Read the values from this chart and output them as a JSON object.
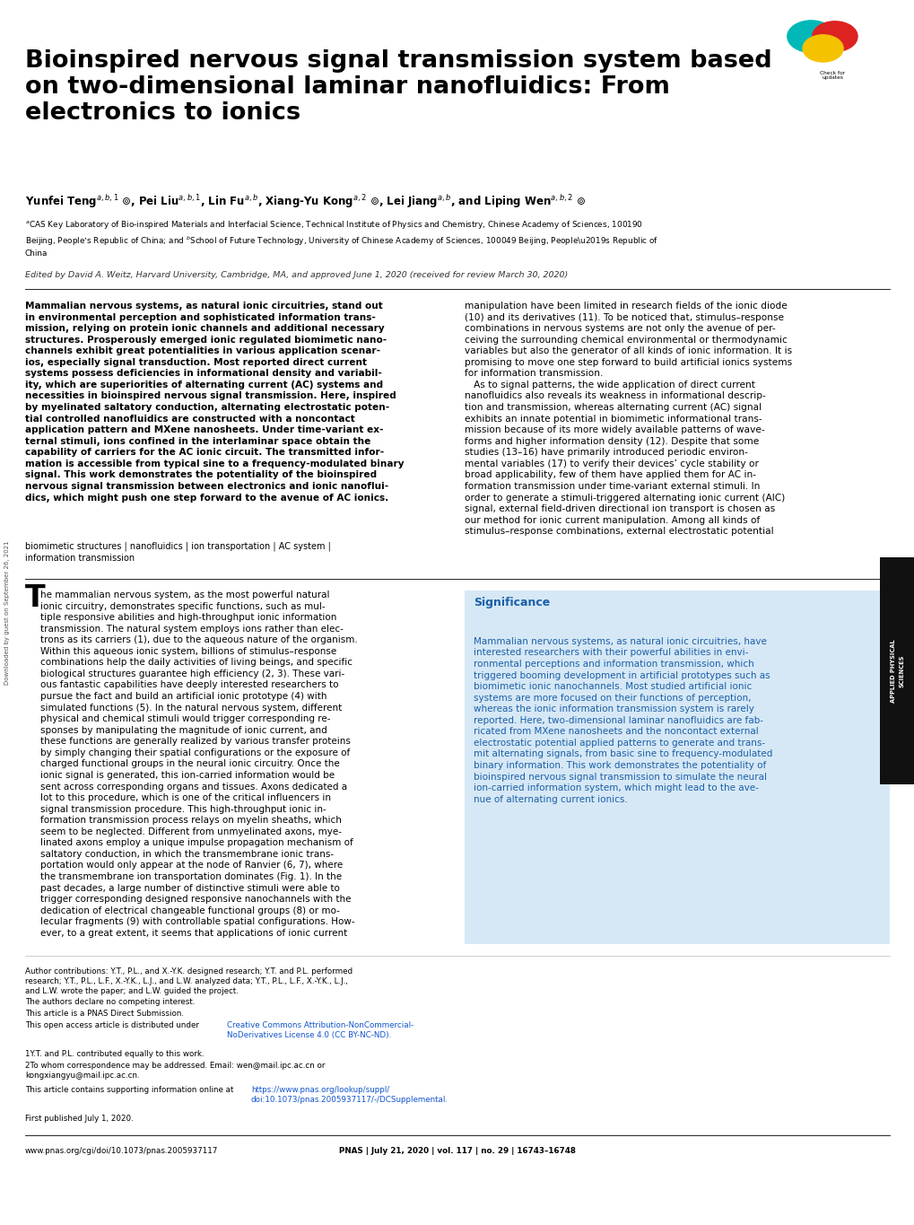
{
  "bg_color": "#ffffff",
  "page_width": 10.2,
  "page_height": 13.65,
  "title": "Bioinspired nervous signal transmission system based\non two-dimensional laminar nanofluidics: From\nelectronics to ionics",
  "edited_by": "Edited by David A. Weitz, Harvard University, Cambridge, MA, and approved June 1, 2020 (received for review March 30, 2020)",
  "abstract_bold_left": "Mammalian nervous systems, as natural ionic circuitries, stand out\nin environmental perception and sophisticated information trans-\nmission, relying on protein ionic channels and additional necessary\nstructures. Prosperously emerged ionic regulated biomimetic nano-\nchannels exhibit great potentialities in various application scenar-\nios, especially signal transduction. Most reported direct current\nsystems possess deficiencies in informational density and variabil-\nity, which are superiorities of alternating current (AC) systems and\nnecessities in bioinspired nervous signal transmission. Here, inspired\nby myelinated saltatory conduction, alternating electrostatic poten-\ntial controlled nanofluidics are constructed with a noncontact\napplication pattern and MXene nanosheets. Under time-variant ex-\nternal stimuli, ions confined in the interlaminar space obtain the\ncapability of carriers for the AC ionic circuit. The transmitted infor-\nmation is accessible from typical sine to a frequency-modulated binary\nsignal. This work demonstrates the potentiality of the bioinspired\nnervous signal transmission between electronics and ionic nanoflui-\ndics, which might push one step forward to the avenue of AC ionics.",
  "abstract_right": "manipulation have been limited in research fields of the ionic diode\n(10) and its derivatives (11). To be noticed that, stimulus–response\ncombinations in nervous systems are not only the avenue of per-\nceiving the surrounding chemical environmental or thermodynamic\nvariables but also the generator of all kinds of ionic information. It is\npromising to move one step forward to build artificial ionics systems\nfor information transmission.\n   As to signal patterns, the wide application of direct current\nnanofluidics also reveals its weakness in informational descrip-\ntion and transmission, whereas alternating current (AC) signal\nexhibits an innate potential in biomimetic informational trans-\nmission because of its more widely available patterns of wave-\nforms and higher information density (12). Despite that some\nstudies (13–16) have primarily introduced periodic environ-\nmental variables (17) to verify their devices’ cycle stability or\nbroad applicability, few of them have applied them for AC in-\nformation transmission under time-variant external stimuli. In\norder to generate a stimuli-triggered alternating ionic current (AIC)\nsignal, external field-driven directional ion transport is chosen as\nour method for ionic current manipulation. Among all kinds of\nstimulus–response combinations, external electrostatic potential",
  "keywords": "biomimetic structures | nanofluidics | ion transportation | AC system |\ninformation transmission",
  "body_left_rest": "he mammalian nervous system, as the most powerful natural\nionic circuitry, demonstrates specific functions, such as mul-\ntiple responsive abilities and high-throughput ionic information\ntransmission. The natural system employs ions rather than elec-\ntrons as its carriers (1), due to the aqueous nature of the organism.\nWithin this aqueous ionic system, billions of stimulus–response\ncombinations help the daily activities of living beings, and specific\nbiological structures guarantee high efficiency (2, 3). These vari-\nous fantastic capabilities have deeply interested researchers to\npursue the fact and build an artificial ionic prototype (4) with\nsimulated functions (5). In the natural nervous system, different\nphysical and chemical stimuli would trigger corresponding re-\nsponses by manipulating the magnitude of ionic current, and\nthese functions are generally realized by various transfer proteins\nby simply changing their spatial configurations or the exposure of\ncharged functional groups in the neural ionic circuitry. Once the\nionic signal is generated, this ion-carried information would be\nsent across corresponding organs and tissues. Axons dedicated a\nlot to this procedure, which is one of the critical influencers in\nsignal transmission procedure. This high-throughput ionic in-\nformation transmission process relays on myelin sheaths, which\nseem to be neglected. Different from unmyelinated axons, mye-\nlinated axons employ a unique impulse propagation mechanism of\nsaltatory conduction, in which the transmembrane ionic trans-\nportation would only appear at the node of Ranvier (6, 7), where\nthe transmembrane ion transportation dominates (Fig. 1). In the\npast decades, a large number of distinctive stimuli were able to\ntrigger corresponding designed responsive nanochannels with the\ndedication of electrical changeable functional groups (8) or mo-\nlecular fragments (9) with controllable spatial configurations. How-\never, to a great extent, it seems that applications of ionic current",
  "significance_title": "Significance",
  "significance_text": "Mammalian nervous systems, as natural ionic circuitries, have\ninterested researchers with their powerful abilities in envi-\nronmental perceptions and information transmission, which\ntriggered booming development in artificial prototypes such as\nbiomimetic ionic nanochannels. Most studied artificial ionic\nsystems are more focused on their functions of perception,\nwhereas the ionic information transmission system is rarely\nreported. Here, two-dimensional laminar nanofluidics are fab-\nricated from MXene nanosheets and the noncontact external\nelectrostatic potential applied patterns to generate and trans-\nmit alternating signals, from basic sine to frequency-modulated\nbinary information. This work demonstrates the potentiality of\nbioinspired nervous signal transmission to simulate the neural\nion-carried information system, which might lead to the ave-\nnue of alternating current ionics.",
  "author_contributions": "Author contributions: Y.T., P.L., and X.-Y.K. designed research; Y.T. and P.L. performed\nresearch; Y.T., P.L., L.F., X.-Y.K., L.J., and L.W. analyzed data; Y.T., P.L., L.F., X.-Y.K., L.J.,\nand L.W. wrote the paper; and L.W. guided the project.",
  "competing": "The authors declare no competing interest.",
  "direct_submission": "This article is a PNAS Direct Submission.",
  "footnote1": "1Y.T. and P.L. contributed equally to this work.",
  "footnote2": "2To whom correspondence may be addressed. Email: wen@mail.ipc.ac.cn or\nkongxiangyu@mail.ipc.ac.cn.",
  "first_pub": "First published July 1, 2020.",
  "footer_left": "www.pnas.org/cgi/doi/10.1073/pnas.2005937117",
  "footer_center": "PNAS | July 21, 2020 | vol. 117 | no. 29 | 16743–16748",
  "date_stamp": "Downloaded by guest on September 26, 2021",
  "title_color": "#000000",
  "significance_box_bg": "#d6e8f5",
  "significance_title_color": "#1a5fa8",
  "significance_text_color": "#1a5fa8",
  "open_access_link_color": "#1155cc",
  "supporting_link_color": "#1155cc"
}
